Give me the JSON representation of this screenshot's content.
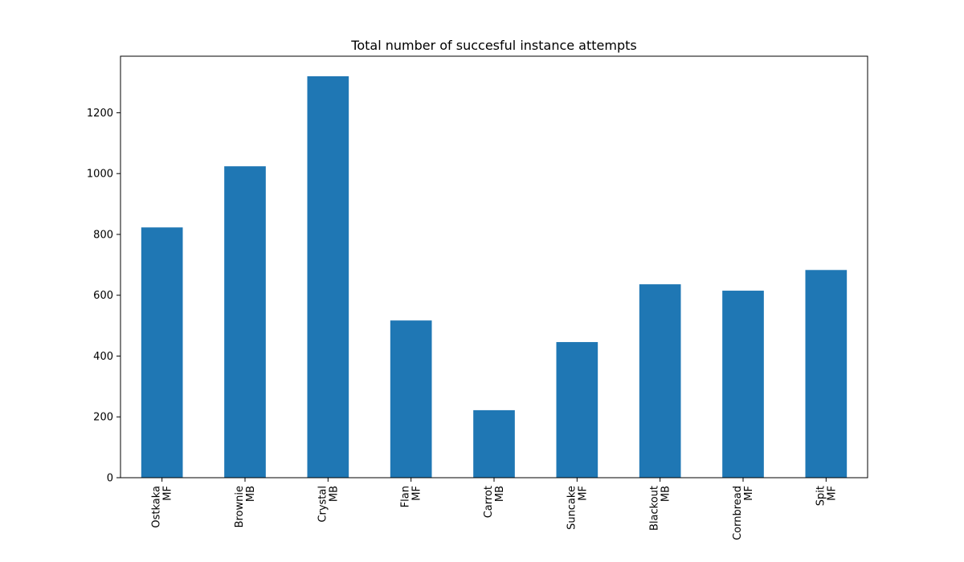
{
  "chart_data": {
    "type": "bar",
    "title": "Total number of succesful instance attempts",
    "xlabel": "",
    "ylabel": "",
    "categories": [
      [
        "Ostkaka",
        "MF"
      ],
      [
        "Brownie",
        "MB"
      ],
      [
        "Crystal",
        "MB"
      ],
      [
        "Flan",
        "MF"
      ],
      [
        "Carrot",
        "MB"
      ],
      [
        "Suncake",
        "MF"
      ],
      [
        "Blackout",
        "MB"
      ],
      [
        "Cornbread",
        "MF"
      ],
      [
        "Spit",
        "MF"
      ]
    ],
    "values": [
      823,
      1024,
      1320,
      517,
      222,
      446,
      636,
      615,
      683
    ],
    "ylim": [
      0,
      1386
    ],
    "yticks": [
      0,
      200,
      400,
      600,
      800,
      1000,
      1200
    ],
    "bar_color": "#1f77b4",
    "grid": false,
    "legend": "none"
  }
}
